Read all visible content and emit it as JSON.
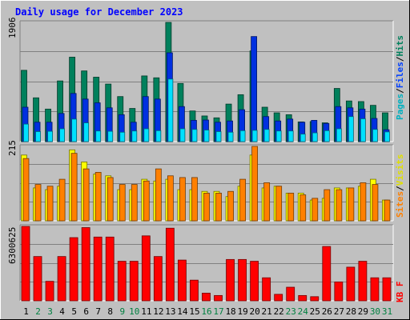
{
  "chart_data": {
    "title": "Daily usage for December 2023",
    "type": "bar",
    "days": [
      "1",
      "2",
      "3",
      "4",
      "5",
      "6",
      "7",
      "8",
      "9",
      "10",
      "11",
      "12",
      "13",
      "14",
      "15",
      "16",
      "17",
      "18",
      "19",
      "20",
      "21",
      "22",
      "23",
      "24",
      "25",
      "26",
      "27",
      "28",
      "29",
      "30",
      "31"
    ],
    "weekend_days": [
      "2",
      "3",
      "9",
      "10",
      "16",
      "17",
      "23",
      "24",
      "30",
      "31"
    ],
    "panels": {
      "top": {
        "max_label": "1906",
        "ymax": 1906,
        "series": [
          {
            "name": "Pages",
            "color": "#00e0ff",
            "values": [
              280,
              160,
              165,
              205,
              360,
              300,
              170,
              165,
              150,
              170,
              205,
              175,
              1000,
              205,
              195,
              185,
              160,
              150,
              175,
              180,
              195,
              170,
              170,
              120,
              140,
              175,
              205,
              400,
              365,
              195,
              155
            ]
          },
          {
            "name": "Files",
            "color": "#0030e0",
            "values": [
              550,
              310,
              310,
              450,
              770,
              680,
              620,
              540,
              430,
              310,
              720,
              680,
              1420,
              560,
              340,
              345,
              310,
              330,
              510,
              1680,
              400,
              330,
              360,
              310,
              340,
              290,
              560,
              540,
              520,
              370,
              190
            ]
          },
          {
            "name": "Hits",
            "color": "#00805c",
            "values": [
              1140,
              700,
              520,
              970,
              1350,
              1130,
              1030,
              920,
              720,
              530,
              1050,
              1020,
              1906,
              930,
              490,
              410,
              380,
              600,
              750,
              1450,
              550,
              460,
              430,
              315,
              320,
              300,
              850,
              650,
              640,
              580,
              460
            ]
          }
        ]
      },
      "middle": {
        "max_label": "215",
        "ymax": 215,
        "series": [
          {
            "name": "Visits",
            "color": "#ffff00",
            "values": [
              190,
              95,
              90,
              100,
              205,
              170,
              135,
              130,
              90,
              90,
              120,
              115,
              120,
              90,
              90,
              85,
              85,
              70,
              100,
              190,
              95,
              100,
              80,
              80,
              60,
              65,
              95,
              95,
              100,
              120,
              60
            ]
          },
          {
            "name": "Sites",
            "color": "#ff8000",
            "values": [
              180,
              105,
              100,
              120,
              195,
              150,
              140,
              125,
              105,
              105,
              115,
              150,
              130,
              125,
              125,
              80,
              80,
              85,
              120,
              215,
              110,
              100,
              80,
              75,
              65,
              90,
              90,
              95,
              110,
              105,
              60
            ]
          }
        ]
      },
      "bottom": {
        "max_label": "6300625",
        "ymax": 6300625,
        "series": [
          {
            "name": "KB F",
            "color": "#ff0000",
            "values": [
              6300625,
              3750000,
              1650000,
              3750000,
              5350000,
              6200000,
              5400000,
              5400000,
              3350000,
              3350000,
              5500000,
              3750000,
              6150000,
              3450000,
              1750000,
              650000,
              450000,
              3500000,
              3500000,
              3350000,
              1950000,
              550000,
              1150000,
              450000,
              350000,
              4600000,
              1600000,
              2850000,
              3350000,
              1950000,
              1950000
            ]
          }
        ]
      }
    }
  },
  "axis_labels": {
    "right_top": [
      {
        "text": "Pages",
        "color": "#00b0c0"
      },
      {
        "text": "Files",
        "color": "#0040ff"
      },
      {
        "text": "Hits",
        "color": "#00805c"
      }
    ],
    "right_middle": [
      {
        "text": "Sites",
        "color": "#ff8000"
      },
      {
        "text": "Visits",
        "color": "#e0e000"
      }
    ],
    "right_bottom": [
      {
        "text": "KB F",
        "color": "#ff0000"
      }
    ],
    "separator": "/"
  },
  "colors": {
    "background": "#c0c0c0",
    "title": "#0000ff",
    "weekday_label": "#000000",
    "weekend_label": "#008040",
    "grid": "#808080"
  }
}
